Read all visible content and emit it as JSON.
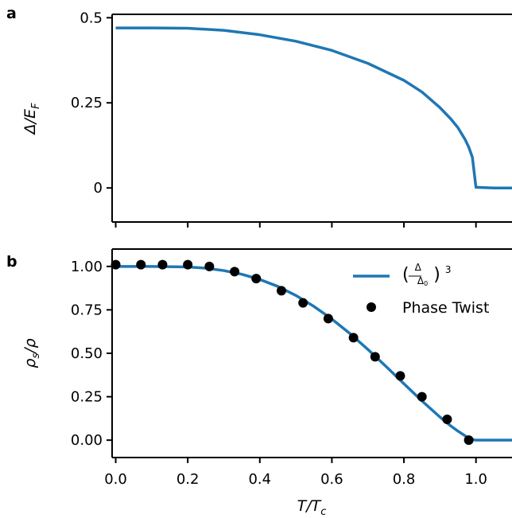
{
  "chart_data": [
    {
      "panel_label": "a",
      "type": "line",
      "xlabel": "",
      "ylabel": "Δ/E_F",
      "ylabel_main": "Δ/E",
      "ylabel_sub": "F",
      "xlim": [
        -0.01,
        1.1
      ],
      "ylim": [
        -0.1,
        0.51
      ],
      "yticks": [
        0,
        0.25,
        0.5
      ],
      "ytick_labels": [
        "0",
        "0.25",
        "0.5"
      ],
      "xticks": [
        0.0,
        0.2,
        0.4,
        0.6,
        0.8,
        1.0
      ],
      "xtick_labels_visible": false,
      "series": [
        {
          "color": "#1f77b4",
          "x": [
            0.0,
            0.1,
            0.2,
            0.3,
            0.4,
            0.5,
            0.6,
            0.7,
            0.8,
            0.85,
            0.9,
            0.93,
            0.95,
            0.97,
            0.98,
            0.99,
            1.0,
            1.05,
            1.1
          ],
          "y": [
            0.47,
            0.47,
            0.469,
            0.463,
            0.45,
            0.431,
            0.404,
            0.366,
            0.316,
            0.282,
            0.236,
            0.203,
            0.177,
            0.142,
            0.12,
            0.09,
            0.002,
            0.0,
            0.0
          ]
        }
      ]
    },
    {
      "panel_label": "b",
      "type": "line",
      "xlabel": "T/T_c",
      "xlabel_main": "T/T",
      "xlabel_sub": "c",
      "ylabel": "ρ_s/ρ",
      "ylabel_pre": "ρ",
      "ylabel_sub": "s",
      "ylabel_post": "/ρ",
      "xlim": [
        -0.01,
        1.1
      ],
      "ylim": [
        -0.1,
        1.1
      ],
      "yticks": [
        0,
        0.25,
        0.5,
        0.75,
        1.0
      ],
      "ytick_labels": [
        "0.00",
        "0.25",
        "0.50",
        "0.75",
        "1.00"
      ],
      "xticks": [
        0.0,
        0.2,
        0.4,
        0.6,
        0.8,
        1.0
      ],
      "xtick_labels": [
        "0.0",
        "0.2",
        "0.4",
        "0.6",
        "0.8",
        "1.0"
      ],
      "legend_position": "top-right",
      "series": [
        {
          "name": "(Δ/Δ₀)³",
          "type": "line",
          "color": "#1f77b4",
          "x": [
            0.0,
            0.1,
            0.2,
            0.25,
            0.3,
            0.35,
            0.4,
            0.45,
            0.5,
            0.55,
            0.6,
            0.65,
            0.7,
            0.75,
            0.8,
            0.85,
            0.9,
            0.93,
            0.95,
            0.97,
            0.98,
            0.99,
            1.0,
            1.05,
            1.1
          ],
          "y": [
            1.0,
            1.0,
            0.997,
            0.99,
            0.976,
            0.955,
            0.925,
            0.885,
            0.833,
            0.77,
            0.697,
            0.614,
            0.522,
            0.425,
            0.325,
            0.226,
            0.133,
            0.082,
            0.052,
            0.025,
            0.013,
            0.004,
            0.0,
            0.0,
            0.0
          ]
        },
        {
          "name": "Phase Twist",
          "type": "scatter",
          "color": "#000000",
          "x": [
            0.0,
            0.07,
            0.13,
            0.2,
            0.26,
            0.33,
            0.39,
            0.46,
            0.52,
            0.59,
            0.66,
            0.72,
            0.79,
            0.85,
            0.92,
            0.98
          ],
          "y": [
            1.01,
            1.01,
            1.01,
            1.01,
            1.0,
            0.97,
            0.93,
            0.86,
            0.79,
            0.7,
            0.59,
            0.48,
            0.37,
            0.25,
            0.12,
            0.0
          ]
        }
      ]
    }
  ]
}
